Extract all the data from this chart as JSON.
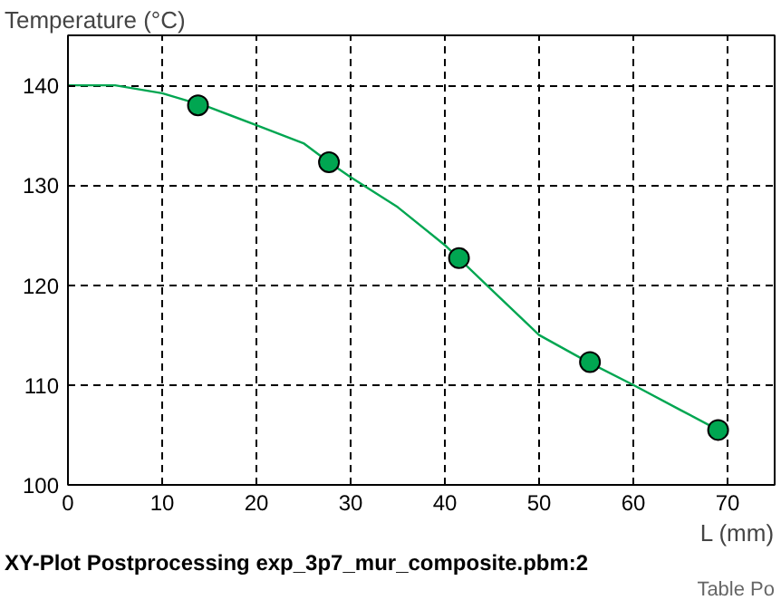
{
  "chart_data": {
    "type": "line",
    "ylabel": "Temperature (°C)",
    "xlabel": "L (mm)",
    "xlim": [
      0,
      75
    ],
    "ylim": [
      100,
      145
    ],
    "xticks": [
      0,
      10,
      20,
      30,
      40,
      50,
      60,
      70
    ],
    "yticks": [
      100,
      110,
      120,
      130,
      140
    ],
    "grid": true,
    "series": [
      {
        "type": "line",
        "color": "#00a651",
        "marker": "none",
        "x": [
          0,
          5,
          10,
          15,
          20,
          25,
          27.7,
          30,
          35,
          40,
          45,
          50,
          55,
          60,
          65,
          70
        ],
        "values": [
          140,
          140,
          139.2,
          137.8,
          136,
          134.2,
          132.3,
          130.8,
          127.8,
          124,
          119.5,
          115,
          112.4,
          110,
          107.5,
          105
        ]
      },
      {
        "type": "scatter",
        "color": "#00a651",
        "marker": "circle",
        "x": [
          13.8,
          27.7,
          41.5,
          55.4,
          69
        ],
        "values": [
          138,
          132.3,
          122.7,
          112.3,
          105.5
        ]
      }
    ],
    "annotations": [
      "XY-Plot Postprocessing exp_3p7_mur_composite.pbm:2",
      "Table Po"
    ]
  }
}
